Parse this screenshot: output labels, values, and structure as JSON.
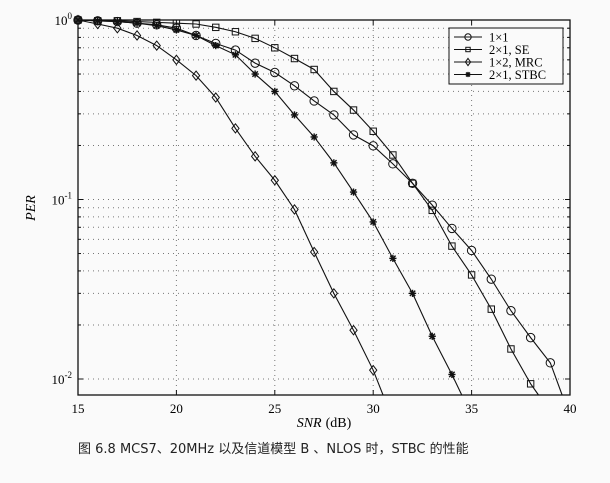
{
  "chart_data": {
    "type": "line",
    "title": "",
    "xlabel": "SNR (dB)",
    "xlabel_italic_part": "SNR",
    "xlabel_unit": "(dB)",
    "ylabel": "PER",
    "yscale": "log",
    "xlim": [
      15,
      40
    ],
    "ylim": [
      0.008,
      1
    ],
    "xticks": [
      15,
      20,
      25,
      30,
      35,
      40
    ],
    "yticks": [
      {
        "value": 1,
        "label_base": "10",
        "label_exp": "0"
      },
      {
        "value": 0.1,
        "label_base": "10",
        "label_exp": "-1"
      },
      {
        "value": 0.01,
        "label_base": "10",
        "label_exp": "-2"
      }
    ],
    "grid": true,
    "legend_position": "upper right",
    "series": [
      {
        "name": "1×1",
        "marker": "circle",
        "x": [
          15,
          16,
          17,
          18,
          19,
          20,
          21,
          22,
          23,
          24,
          25,
          26,
          27,
          28,
          29,
          30,
          31,
          32,
          33,
          34,
          35,
          36,
          37,
          38,
          39,
          39.6
        ],
        "values": [
          1.0,
          0.99,
          0.98,
          0.96,
          0.94,
          0.9,
          0.82,
          0.74,
          0.68,
          0.575,
          0.51,
          0.43,
          0.354,
          0.296,
          0.229,
          0.199,
          0.158,
          0.123,
          0.093,
          0.069,
          0.052,
          0.036,
          0.024,
          0.017,
          0.0123,
          0.008
        ]
      },
      {
        "name": "2×1, SE",
        "marker": "square",
        "x": [
          15,
          16,
          17,
          18,
          19,
          20,
          21,
          22,
          23,
          24,
          25,
          26,
          27,
          28,
          29,
          30,
          31,
          32,
          33,
          34,
          35,
          36,
          37,
          38,
          38.4
        ],
        "values": [
          1.0,
          0.99,
          0.99,
          0.98,
          0.97,
          0.96,
          0.95,
          0.91,
          0.86,
          0.79,
          0.7,
          0.61,
          0.53,
          0.4,
          0.315,
          0.24,
          0.177,
          0.123,
          0.087,
          0.055,
          0.038,
          0.0245,
          0.0147,
          0.0094,
          0.008
        ]
      },
      {
        "name": "1×2, MRC",
        "marker": "diamond",
        "x": [
          15,
          16,
          17,
          18,
          19,
          20,
          21,
          22,
          23,
          24,
          25,
          26,
          27,
          28,
          29,
          30,
          30.5
        ],
        "values": [
          1.0,
          0.95,
          0.9,
          0.82,
          0.72,
          0.6,
          0.49,
          0.37,
          0.249,
          0.174,
          0.128,
          0.088,
          0.051,
          0.03,
          0.0187,
          0.0112,
          0.008
        ]
      },
      {
        "name": "2×1, STBC",
        "marker": "star",
        "x": [
          15,
          16,
          17,
          18,
          19,
          20,
          21,
          22,
          23,
          24,
          25,
          26,
          27,
          28,
          29,
          30,
          31,
          32,
          33,
          34,
          34.5
        ],
        "values": [
          1.0,
          0.99,
          0.98,
          0.96,
          0.93,
          0.88,
          0.82,
          0.72,
          0.64,
          0.5,
          0.4,
          0.296,
          0.223,
          0.16,
          0.11,
          0.075,
          0.047,
          0.03,
          0.0173,
          0.0106,
          0.008
        ]
      }
    ]
  },
  "caption": "图 6.8   MCS7、20MHz 以及信道模型 B 、NLOS 时，STBC 的性能"
}
